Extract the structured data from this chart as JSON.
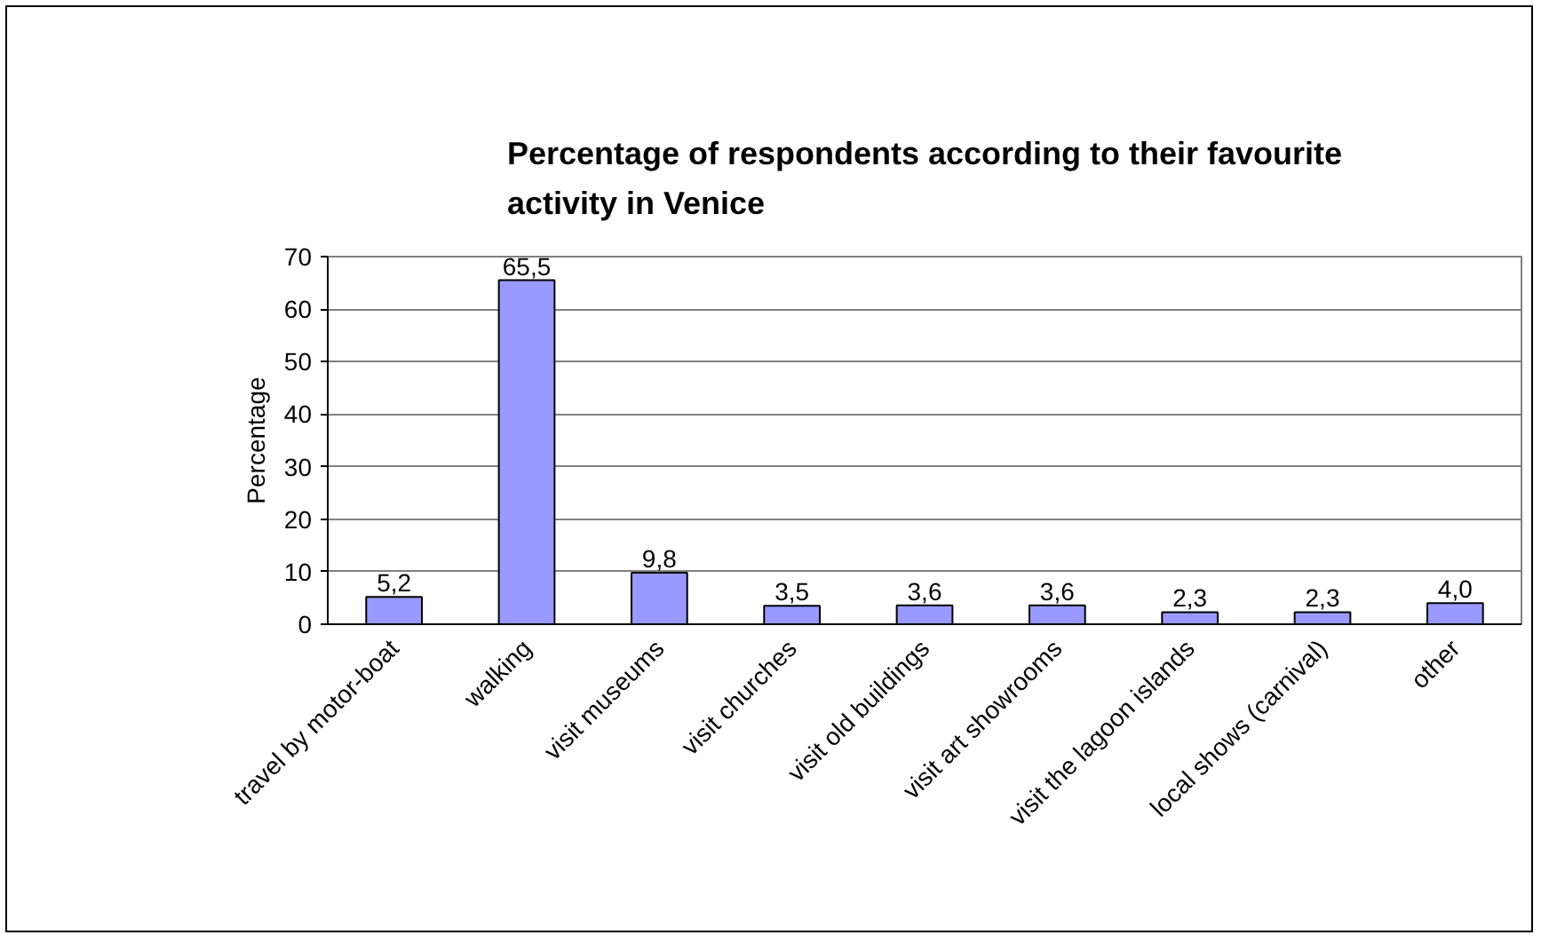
{
  "chart_data": {
    "type": "bar",
    "title": "Percentage of respondents according to their favourite activity in Venice",
    "ylabel": "Percentage",
    "categories": [
      "travel by motor-boat",
      "walking",
      "visit museums",
      "visit churches",
      "visit old buildings",
      "visit art showrooms",
      "visit the lagoon islands",
      "local shows (carnival)",
      "other"
    ],
    "values": [
      5.2,
      65.5,
      9.8,
      3.5,
      3.6,
      3.6,
      2.3,
      2.3,
      4.0
    ],
    "value_labels": [
      "5,2",
      "65,5",
      "9,8",
      "3,5",
      "3,6",
      "3,6",
      "2,3",
      "2,3",
      "4,0"
    ],
    "color": "#9999ff",
    "ylim": [
      0,
      70
    ],
    "yticks": [
      0,
      10,
      20,
      30,
      40,
      50,
      60,
      70
    ],
    "grid": "y"
  }
}
